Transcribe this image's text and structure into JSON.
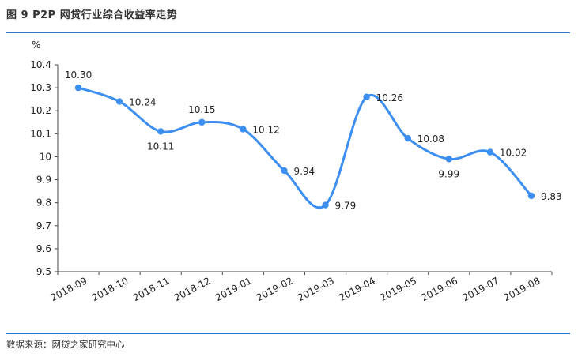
{
  "figure": {
    "title": "图 9   P2P 网贷行业综合收益率走势",
    "source": "数据来源：网贷之家研究中心"
  },
  "chart_data": {
    "type": "line",
    "title": "P2P 网贷行业综合收益率走势",
    "ylabel": "%",
    "xlabel": "",
    "ylim": [
      9.5,
      10.4
    ],
    "yticks": [
      "10.4",
      "10.3",
      "10.2",
      "10.1",
      "10",
      "9.9",
      "9.8",
      "9.7",
      "9.6",
      "9.5"
    ],
    "categories": [
      "2018-09",
      "2018-10",
      "2018-11",
      "2018-12",
      "2019-01",
      "2019-02",
      "2019-03",
      "2019-04",
      "2019-05",
      "2019-06",
      "2019-07",
      "2019-08"
    ],
    "series": [
      {
        "values": [
          10.3,
          10.24,
          10.11,
          10.15,
          10.12,
          9.94,
          9.79,
          10.26,
          10.08,
          9.99,
          10.02,
          9.83
        ],
        "labels": [
          "10.30",
          "10.24",
          "10.11",
          "10.15",
          "10.12",
          "9.94",
          "9.79",
          "10.26",
          "10.08",
          "9.99",
          "10.02",
          "9.83"
        ]
      }
    ],
    "grid": false,
    "line_color": "#3c8ef0"
  }
}
